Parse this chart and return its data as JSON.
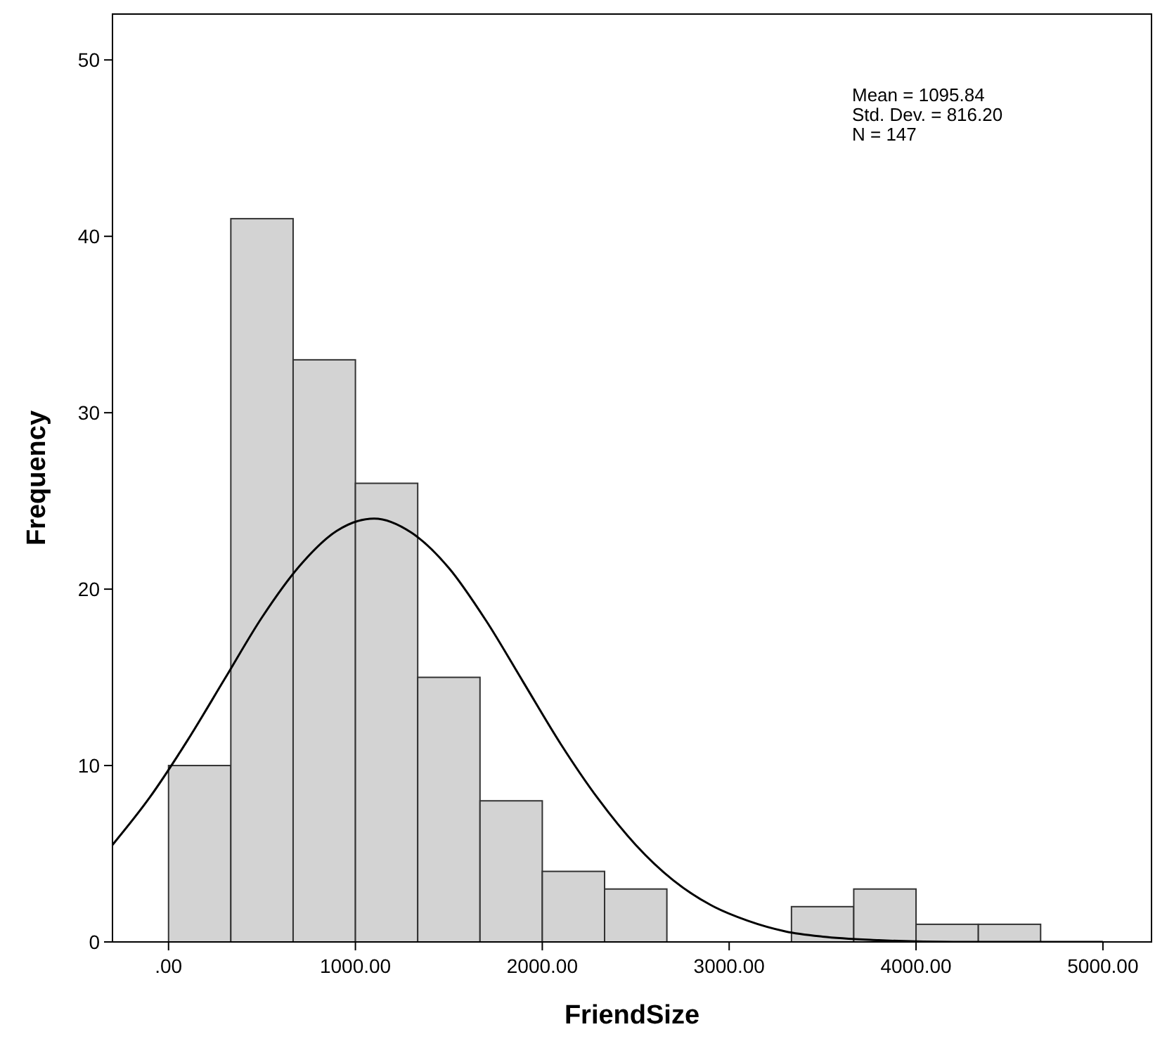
{
  "chart_data": {
    "type": "histogram",
    "xlabel": "FriendSize",
    "ylabel": "Frequency",
    "bins": [
      0,
      333.33,
      666.67,
      1000,
      1333.33,
      1666.67,
      2000,
      2333.33,
      2666.67,
      3000,
      3333.33,
      3666.67,
      4000,
      4333.33,
      4666.67
    ],
    "values": [
      10,
      41,
      33,
      26,
      15,
      8,
      4,
      3,
      0,
      0,
      2,
      3,
      1,
      1
    ],
    "color": "#d3d3d3",
    "series": [
      {
        "type": "line",
        "color": "#000000",
        "x": [
          -300,
          -100,
          100,
          300,
          500,
          700,
          900,
          1100,
          1300,
          1500,
          1700,
          1900,
          2100,
          2300,
          2500,
          2700,
          2900,
          3100,
          3300,
          3500,
          3800,
          4200,
          4600,
          5000
        ],
        "values": [
          5.5,
          8.2,
          11.4,
          14.9,
          18.4,
          21.3,
          23.3,
          24.0,
          23.2,
          21.2,
          18.2,
          14.7,
          11.2,
          8.1,
          5.5,
          3.5,
          2.1,
          1.2,
          0.6,
          0.3,
          0.1,
          0.0,
          0.0,
          0.0
        ]
      }
    ],
    "xlim": [
      -300,
      5260
    ],
    "xticks": [
      {
        "value": 0,
        "label": ".00"
      },
      {
        "value": 1000,
        "label": "1000.00"
      },
      {
        "value": 2000,
        "label": "2000.00"
      },
      {
        "value": 3000,
        "label": "3000.00"
      },
      {
        "value": 4000,
        "label": "4000.00"
      },
      {
        "value": 5000,
        "label": "5000.00"
      }
    ],
    "ylim": [
      0,
      52.6
    ],
    "yticks": [
      0,
      10,
      20,
      30,
      40,
      50
    ],
    "annotations": [
      "Mean = 1095.84",
      "Std. Dev. = 816.20",
      "N = 147"
    ]
  }
}
